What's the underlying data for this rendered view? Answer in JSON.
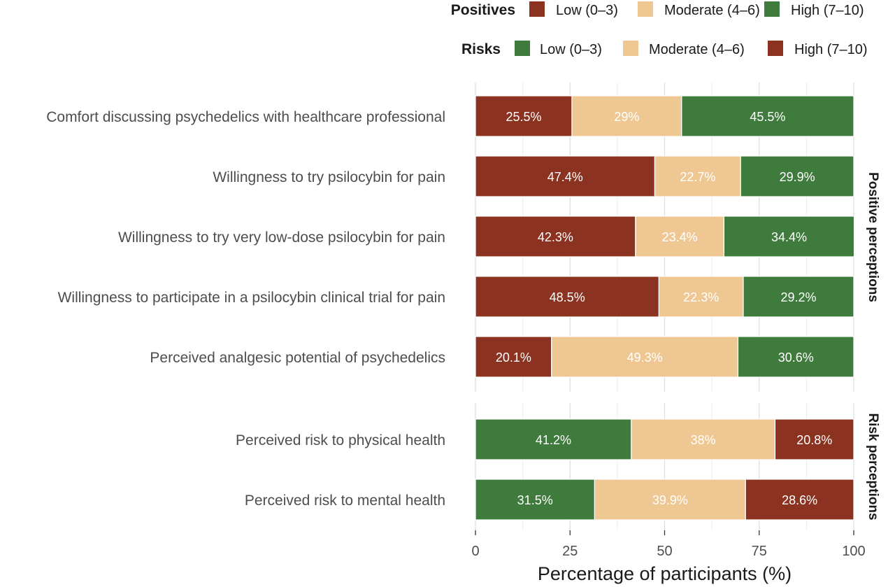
{
  "legend": [
    {
      "title": "Positives",
      "items": [
        {
          "label": "Low (0–3)",
          "color": "#8b3220"
        },
        {
          "label": "Moderate (4–6)",
          "color": "#efc792"
        },
        {
          "label": "High (7–10)",
          "color": "#3e7b3d"
        }
      ]
    },
    {
      "title": "Risks",
      "items": [
        {
          "label": "Low (0–3)",
          "color": "#3e7b3d"
        },
        {
          "label": "Moderate (4–6)",
          "color": "#efc792"
        },
        {
          "label": "High (7–10)",
          "color": "#8b3220"
        }
      ]
    }
  ],
  "chart_data": {
    "type": "bar",
    "orientation": "horizontal",
    "stacked": true,
    "xlabel": "Percentage of participants (%)",
    "xlim": [
      0,
      100
    ],
    "xticks": [
      0,
      25,
      50,
      75,
      100
    ],
    "grid": true,
    "legend_position": "top-right",
    "panels": [
      {
        "strip_label": "Positive perceptions",
        "series_names": [
          "Low (0–3)",
          "Moderate (4–6)",
          "High (7–10)"
        ],
        "series_colors": [
          "#8b3220",
          "#efc792",
          "#3e7b3d"
        ],
        "categories": [
          "Comfort discussing psychedelics with healthcare professional",
          "Willingness to try psilocybin for pain",
          "Willingness to try very low-dose psilocybin for pain",
          "Willingness to participate in a psilocybin clinical trial for pain",
          "Perceived analgesic potential of psychedelics"
        ],
        "values": [
          [
            25.5,
            29,
            45.5
          ],
          [
            47.4,
            22.7,
            29.9
          ],
          [
            42.3,
            23.4,
            34.4
          ],
          [
            48.5,
            22.3,
            29.2
          ],
          [
            20.1,
            49.3,
            30.6
          ]
        ],
        "data_labels": [
          [
            "25.5%",
            "29%",
            "45.5%"
          ],
          [
            "47.4%",
            "22.7%",
            "29.9%"
          ],
          [
            "42.3%",
            "23.4%",
            "34.4%"
          ],
          [
            "48.5%",
            "22.3%",
            "29.2%"
          ],
          [
            "20.1%",
            "49.3%",
            "30.6%"
          ]
        ]
      },
      {
        "strip_label": "Risk perceptions",
        "series_names": [
          "Low (0–3)",
          "Moderate (4–6)",
          "High (7–10)"
        ],
        "series_colors": [
          "#3e7b3d",
          "#efc792",
          "#8b3220"
        ],
        "categories": [
          "Perceived risk to physical health",
          "Perceived risk to mental health"
        ],
        "values": [
          [
            41.2,
            38,
            20.8
          ],
          [
            31.5,
            39.9,
            28.6
          ]
        ],
        "data_labels": [
          [
            "41.2%",
            "38%",
            "20.8%"
          ],
          [
            "31.5%",
            "39.9%",
            "28.6%"
          ]
        ]
      }
    ]
  }
}
